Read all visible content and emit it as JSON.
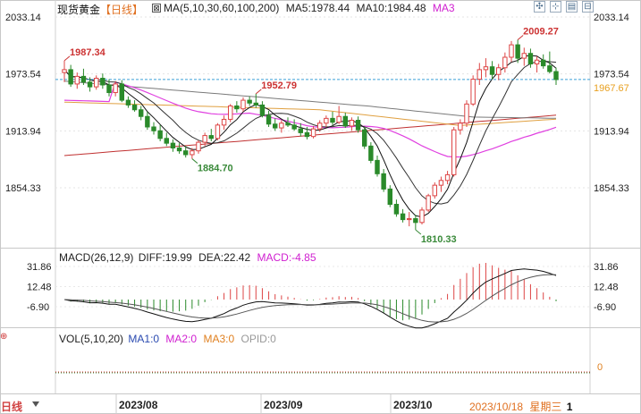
{
  "header": {
    "instrument": "现货黄金",
    "period": "【日线】",
    "ma_label": "MA(5,10,30,60,100,200)",
    "ma5": "MA5:1978.44",
    "ma10": "MA10:1984.48",
    "ma3": "MA3"
  },
  "toolbar": {
    "icons": [
      "expand-icon",
      "shrink-icon",
      "grid-icon",
      "collapse-icon"
    ]
  },
  "colors": {
    "up": "#d44",
    "down": "#2a8a2a",
    "ma5": "#111111",
    "ma10": "#333333",
    "ma30": "#e040e0",
    "ma60": "#e0a040",
    "ma100": "#7a7a7a",
    "ma200": "#c03030",
    "last_price": "#e8a020",
    "ref_line": "#3aa0d8",
    "macd_title": "#d020d0"
  },
  "chart_data": [
    {
      "type": "candlestick",
      "panel": "price",
      "y_ticks": [
        "2033.14",
        "1973.54",
        "1913.94",
        "1854.33"
      ],
      "ylim": [
        1795,
        2045
      ],
      "last_price": "1967.67",
      "annotations": [
        {
          "label": "1987.34",
          "kind": "high"
        },
        {
          "label": "1952.79",
          "kind": "high"
        },
        {
          "label": "1884.70",
          "kind": "low"
        },
        {
          "label": "1810.33",
          "kind": "low"
        },
        {
          "label": "2009.27",
          "kind": "high"
        }
      ],
      "candles": [
        {
          "o": 1975,
          "h": 1987.34,
          "l": 1965,
          "c": 1978
        },
        {
          "o": 1978,
          "h": 1983,
          "l": 1960,
          "c": 1963
        },
        {
          "o": 1963,
          "h": 1975,
          "l": 1958,
          "c": 1971
        },
        {
          "o": 1971,
          "h": 1979,
          "l": 1962,
          "c": 1965
        },
        {
          "o": 1965,
          "h": 1970,
          "l": 1955,
          "c": 1960
        },
        {
          "o": 1960,
          "h": 1972,
          "l": 1957,
          "c": 1969
        },
        {
          "o": 1969,
          "h": 1974,
          "l": 1958,
          "c": 1962
        },
        {
          "o": 1962,
          "h": 1968,
          "l": 1950,
          "c": 1954
        },
        {
          "o": 1954,
          "h": 1966,
          "l": 1950,
          "c": 1963
        },
        {
          "o": 1963,
          "h": 1967,
          "l": 1944,
          "c": 1946
        },
        {
          "o": 1946,
          "h": 1950,
          "l": 1938,
          "c": 1941
        },
        {
          "o": 1941,
          "h": 1946,
          "l": 1934,
          "c": 1936
        },
        {
          "o": 1936,
          "h": 1940,
          "l": 1925,
          "c": 1929
        },
        {
          "o": 1929,
          "h": 1934,
          "l": 1915,
          "c": 1918
        },
        {
          "o": 1918,
          "h": 1923,
          "l": 1910,
          "c": 1914
        },
        {
          "o": 1914,
          "h": 1920,
          "l": 1903,
          "c": 1906
        },
        {
          "o": 1906,
          "h": 1912,
          "l": 1898,
          "c": 1901
        },
        {
          "o": 1901,
          "h": 1905,
          "l": 1892,
          "c": 1896
        },
        {
          "o": 1896,
          "h": 1901,
          "l": 1890,
          "c": 1893
        },
        {
          "o": 1893,
          "h": 1898,
          "l": 1886,
          "c": 1889
        },
        {
          "o": 1889,
          "h": 1896,
          "l": 1884.7,
          "c": 1893
        },
        {
          "o": 1893,
          "h": 1904,
          "l": 1890,
          "c": 1902
        },
        {
          "o": 1902,
          "h": 1912,
          "l": 1898,
          "c": 1909
        },
        {
          "o": 1909,
          "h": 1916,
          "l": 1903,
          "c": 1906
        },
        {
          "o": 1906,
          "h": 1922,
          "l": 1904,
          "c": 1920
        },
        {
          "o": 1920,
          "h": 1930,
          "l": 1915,
          "c": 1926
        },
        {
          "o": 1926,
          "h": 1942,
          "l": 1923,
          "c": 1940
        },
        {
          "o": 1940,
          "h": 1945,
          "l": 1933,
          "c": 1937
        },
        {
          "o": 1937,
          "h": 1949,
          "l": 1934,
          "c": 1946
        },
        {
          "o": 1946,
          "h": 1950,
          "l": 1940,
          "c": 1943
        },
        {
          "o": 1943,
          "h": 1952.79,
          "l": 1938,
          "c": 1941
        },
        {
          "o": 1941,
          "h": 1945,
          "l": 1928,
          "c": 1930
        },
        {
          "o": 1930,
          "h": 1935,
          "l": 1918,
          "c": 1921
        },
        {
          "o": 1921,
          "h": 1927,
          "l": 1914,
          "c": 1917
        },
        {
          "o": 1917,
          "h": 1925,
          "l": 1912,
          "c": 1922
        },
        {
          "o": 1922,
          "h": 1928,
          "l": 1918,
          "c": 1920
        },
        {
          "o": 1920,
          "h": 1926,
          "l": 1914,
          "c": 1916
        },
        {
          "o": 1916,
          "h": 1922,
          "l": 1908,
          "c": 1912
        },
        {
          "o": 1912,
          "h": 1918,
          "l": 1905,
          "c": 1908
        },
        {
          "o": 1908,
          "h": 1919,
          "l": 1906,
          "c": 1916
        },
        {
          "o": 1916,
          "h": 1925,
          "l": 1913,
          "c": 1922
        },
        {
          "o": 1922,
          "h": 1930,
          "l": 1918,
          "c": 1927
        },
        {
          "o": 1927,
          "h": 1934,
          "l": 1920,
          "c": 1923
        },
        {
          "o": 1923,
          "h": 1940,
          "l": 1921,
          "c": 1929
        },
        {
          "o": 1929,
          "h": 1933,
          "l": 1917,
          "c": 1919
        },
        {
          "o": 1919,
          "h": 1928,
          "l": 1914,
          "c": 1925
        },
        {
          "o": 1925,
          "h": 1929,
          "l": 1912,
          "c": 1915
        },
        {
          "o": 1915,
          "h": 1918,
          "l": 1895,
          "c": 1898
        },
        {
          "o": 1898,
          "h": 1902,
          "l": 1880,
          "c": 1883
        },
        {
          "o": 1883,
          "h": 1888,
          "l": 1866,
          "c": 1869
        },
        {
          "o": 1869,
          "h": 1874,
          "l": 1850,
          "c": 1853
        },
        {
          "o": 1853,
          "h": 1857,
          "l": 1834,
          "c": 1837
        },
        {
          "o": 1837,
          "h": 1842,
          "l": 1824,
          "c": 1827
        },
        {
          "o": 1827,
          "h": 1832,
          "l": 1818,
          "c": 1821
        },
        {
          "o": 1821,
          "h": 1829,
          "l": 1814,
          "c": 1822
        },
        {
          "o": 1822,
          "h": 1826,
          "l": 1810.33,
          "c": 1818
        },
        {
          "o": 1818,
          "h": 1834,
          "l": 1816,
          "c": 1831
        },
        {
          "o": 1831,
          "h": 1848,
          "l": 1829,
          "c": 1846
        },
        {
          "o": 1846,
          "h": 1860,
          "l": 1843,
          "c": 1857
        },
        {
          "o": 1857,
          "h": 1866,
          "l": 1850,
          "c": 1862
        },
        {
          "o": 1862,
          "h": 1872,
          "l": 1858,
          "c": 1868
        },
        {
          "o": 1868,
          "h": 1918,
          "l": 1866,
          "c": 1915
        },
        {
          "o": 1915,
          "h": 1926,
          "l": 1910,
          "c": 1922
        },
        {
          "o": 1922,
          "h": 1946,
          "l": 1918,
          "c": 1942
        },
        {
          "o": 1942,
          "h": 1972,
          "l": 1940,
          "c": 1968
        },
        {
          "o": 1968,
          "h": 1985,
          "l": 1962,
          "c": 1978
        },
        {
          "o": 1978,
          "h": 1990,
          "l": 1970,
          "c": 1981
        },
        {
          "o": 1981,
          "h": 1987,
          "l": 1968,
          "c": 1973
        },
        {
          "o": 1973,
          "h": 1984,
          "l": 1967,
          "c": 1980
        },
        {
          "o": 1980,
          "h": 1996,
          "l": 1975,
          "c": 1991
        },
        {
          "o": 1991,
          "h": 2008,
          "l": 1986,
          "c": 2004
        },
        {
          "o": 2004,
          "h": 2009.27,
          "l": 1985,
          "c": 1990
        },
        {
          "o": 1990,
          "h": 2001,
          "l": 1982,
          "c": 1995
        },
        {
          "o": 1995,
          "h": 2000,
          "l": 1980,
          "c": 1984
        },
        {
          "o": 1984,
          "h": 1992,
          "l": 1975,
          "c": 1988
        },
        {
          "o": 1988,
          "h": 1994,
          "l": 1979,
          "c": 1982
        },
        {
          "o": 1982,
          "h": 1997,
          "l": 1974,
          "c": 1976
        },
        {
          "o": 1976,
          "h": 1980,
          "l": 1962,
          "c": 1967.67
        }
      ]
    },
    {
      "type": "macd",
      "panel": "macd",
      "title": "MACD(26,12,9)",
      "diff_label": "DIFF:19.99",
      "dea_label": "DEA:22.42",
      "macd_label": "MACD:-4.85",
      "y_ticks": [
        "31.86",
        "12.48",
        "-6.90"
      ],
      "ylim": [
        -32,
        42
      ]
    },
    {
      "type": "volume",
      "panel": "volume",
      "title": "VOL(5,10,20)",
      "labels": [
        "MA1:0",
        "MA2:0",
        "MA3:0",
        "OPID:0"
      ],
      "y_ticks": [
        "0"
      ]
    }
  ],
  "footer": {
    "period": "日线",
    "months": [
      "2023/08",
      "2023/09",
      "2023/10"
    ],
    "cursor_date": "2023/10/18",
    "weekday": "星期三",
    "count": "1"
  }
}
